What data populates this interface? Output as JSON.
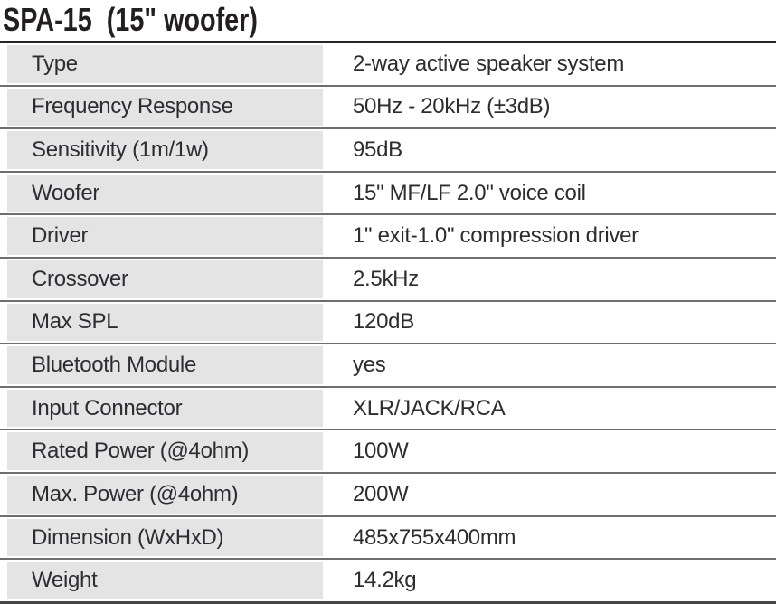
{
  "title": "SPA-15  (15\" woofer)",
  "table": {
    "rows": [
      {
        "label": "Type",
        "value": "2-way active speaker system"
      },
      {
        "label": "Frequency Response",
        "value": "50Hz - 20kHz (±3dB)"
      },
      {
        "label": "Sensitivity (1m/1w)",
        "value": "95dB"
      },
      {
        "label": "Woofer",
        "value": "15\" MF/LF 2.0\" voice coil"
      },
      {
        "label": "Driver",
        "value": "1\" exit-1.0\" compression driver"
      },
      {
        "label": "Crossover",
        "value": "2.5kHz"
      },
      {
        "label": "Max SPL",
        "value": "120dB"
      },
      {
        "label": "Bluetooth Module",
        "value": "yes"
      },
      {
        "label": "Input Connector",
        "value": "XLR/JACK/RCA"
      },
      {
        "label": "Rated Power (@4ohm)",
        "value": "100W"
      },
      {
        "label": "Max. Power (@4ohm)",
        "value": "200W"
      },
      {
        "label": "Dimension (WxHxD)",
        "value": "485x755x400mm"
      },
      {
        "label": "Weight",
        "value": "14.2kg"
      }
    ]
  },
  "colors": {
    "label_column_bg": "#e4e4e5",
    "row_separator": "#6e6e6e",
    "frame_top": "#262626",
    "frame_bottom": "#454545",
    "text": "#2d2d2f",
    "title_text": "#231f20"
  }
}
